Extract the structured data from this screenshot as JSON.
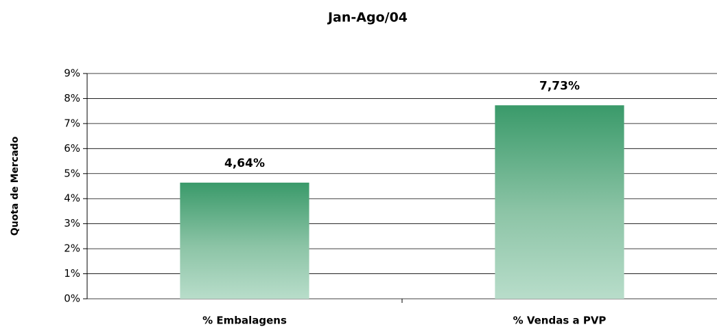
{
  "chart_data": {
    "type": "bar",
    "title": "Jan-Ago/04",
    "y_label": "Quota de Mercado",
    "categories": [
      "% Embalagens",
      "% Vendas a PVP"
    ],
    "values": [
      4.64,
      7.73
    ],
    "value_labels": [
      "4,64%",
      "7,73%"
    ],
    "color": "#3a9a6a",
    "ylim": [
      0,
      9
    ],
    "yticks": [
      {
        "value": 0,
        "label": "0%"
      },
      {
        "value": 1,
        "label": "1%"
      },
      {
        "value": 2,
        "label": "2%"
      },
      {
        "value": 3,
        "label": "3%"
      },
      {
        "value": 4,
        "label": "4%"
      },
      {
        "value": 5,
        "label": "5%"
      },
      {
        "value": 6,
        "label": "6%"
      },
      {
        "value": 7,
        "label": "7%"
      },
      {
        "value": 8,
        "label": "8%"
      },
      {
        "value": 9,
        "label": "9%"
      }
    ],
    "grid": true
  }
}
